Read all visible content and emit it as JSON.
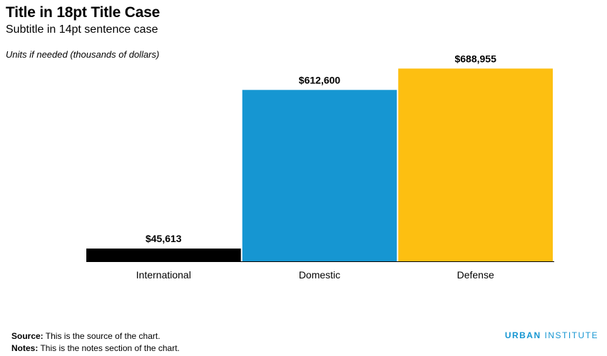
{
  "header": {
    "title": "Title in 18pt Title Case",
    "subtitle": "Subtitle in 14pt sentence case",
    "units": "Units if needed (thousands of dollars)"
  },
  "footer": {
    "source_label": "Source:",
    "source_text": " This is the source of the chart.",
    "notes_label": "Notes:",
    "notes_text": " This is the notes section of the chart.",
    "logo_part1": "URBAN",
    "logo_part2": " INSTITUTE"
  },
  "colors": {
    "bars": [
      "#000000",
      "#1696d2",
      "#fdbf11"
    ],
    "baseline": "#000000",
    "logo": "#1696d2"
  },
  "chart_data": {
    "type": "bar",
    "title": "Title in 18pt Title Case",
    "subtitle": "Subtitle in 14pt sentence case",
    "ylabel": "Units if needed (thousands of dollars)",
    "xlabel": "",
    "categories": [
      "International",
      "Domestic",
      "Defense"
    ],
    "values": [
      45613,
      612600,
      688955
    ],
    "data_labels": [
      "$45,613",
      "$612,600",
      "$688,955"
    ],
    "ylim": [
      0,
      700000
    ],
    "grid": false,
    "legend": "none"
  }
}
